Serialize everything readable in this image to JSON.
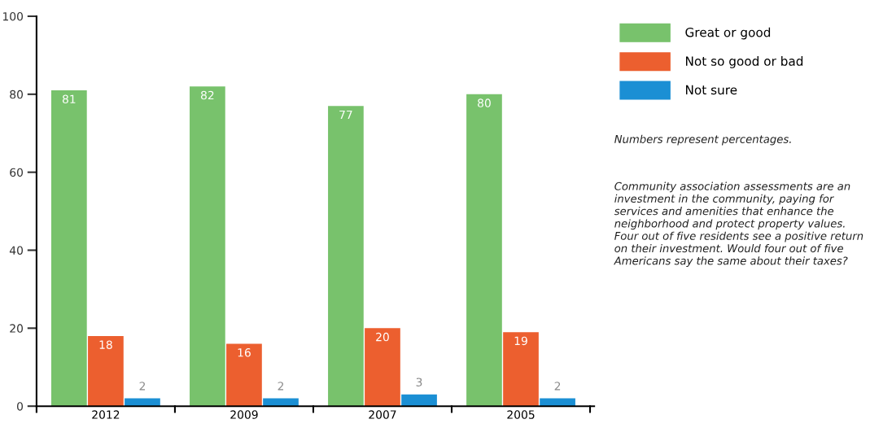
{
  "chart_data": {
    "type": "bar",
    "categories": [
      "2012",
      "2009",
      "2007",
      "2005"
    ],
    "series": [
      {
        "name": "Great or good",
        "color": "#78c26c",
        "values": [
          81,
          82,
          77,
          80
        ]
      },
      {
        "name": "Not so good or bad",
        "color": "#ec5f2f",
        "values": [
          18,
          16,
          20,
          19
        ]
      },
      {
        "name": "Not sure",
        "color": "#1b8fd4",
        "values": [
          2,
          2,
          3,
          2
        ]
      }
    ],
    "ylim": [
      0,
      100
    ],
    "yticks": [
      0,
      20,
      40,
      60,
      80,
      100
    ],
    "data_labels": true,
    "legend": "top right",
    "grid": false,
    "annotations": [
      "Numbers represent percentages.",
      "Community association assessments are an investment in the community, paying for services and amenities that enhance the neighborhood and protect property values. Four out of five residents see a positive return on their investment. Would four out of five Americans say the same about their taxes?"
    ]
  }
}
